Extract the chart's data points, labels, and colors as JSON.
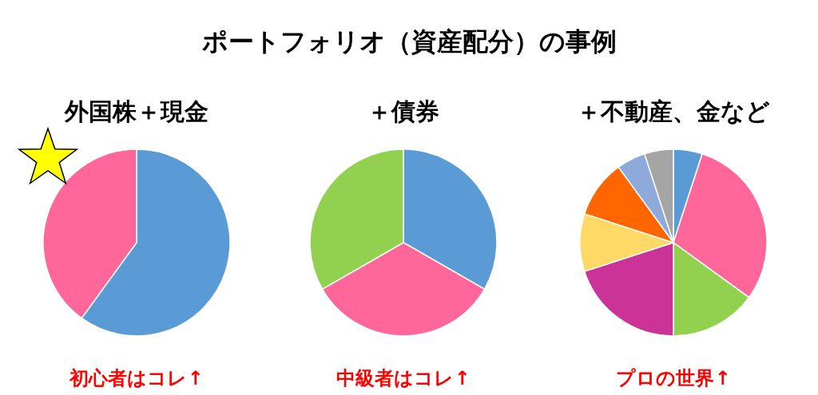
{
  "chart_data": [
    {
      "type": "other",
      "title": "ポートフォリオ（資産配分）の事例"
    },
    {
      "type": "pie",
      "title": "外国株＋現金",
      "categories": [
        null,
        null
      ],
      "values": [
        60,
        40
      ],
      "colors": [
        "#5b9bd5",
        "#ff6699"
      ],
      "annotations": [
        "初心者はコレ↑"
      ]
    },
    {
      "type": "pie",
      "title": "＋債券",
      "categories": [
        null,
        null,
        null
      ],
      "values": [
        33.3,
        33.4,
        33.3
      ],
      "colors": [
        "#5b9bd5",
        "#ff6699",
        "#92d050"
      ],
      "annotations": [
        "中級者はコレ↑"
      ]
    },
    {
      "type": "pie",
      "title": "＋不動産、金など",
      "categories": [
        null,
        null,
        null,
        null,
        null,
        null,
        null,
        null
      ],
      "values": [
        5,
        30,
        15,
        20,
        10,
        10,
        5,
        5
      ],
      "colors": [
        "#5b9bd5",
        "#ff6699",
        "#92d050",
        "#cc3399",
        "#ffd966",
        "#ff6600",
        "#8eaadb",
        "#a5a5a5"
      ],
      "annotations": [
        "プロの世界↑"
      ]
    }
  ]
}
